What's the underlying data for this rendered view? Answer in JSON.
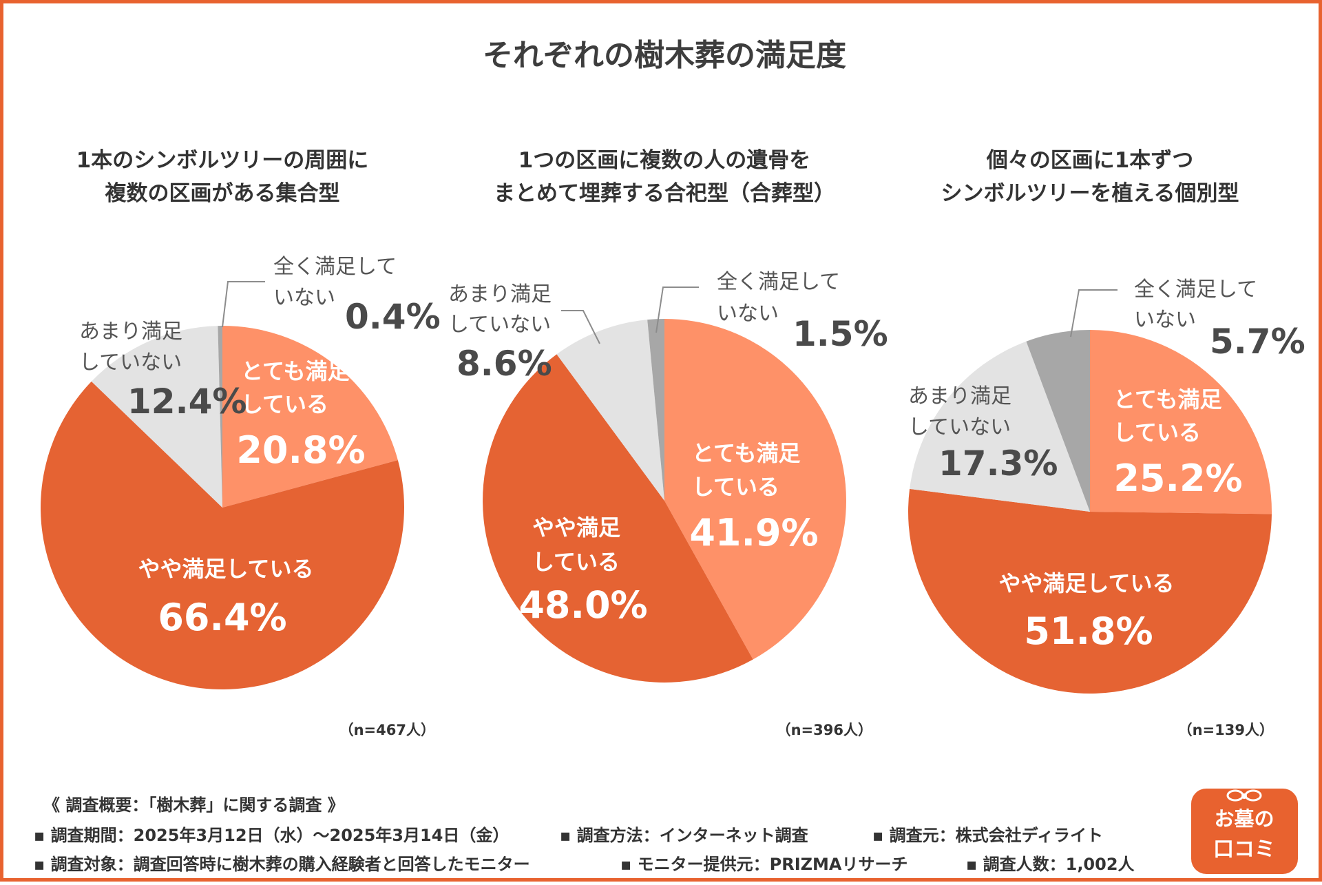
{
  "title": "それぞれの樹木葬の満足度",
  "colors": {
    "very_satisfied": "#fe9168",
    "somewhat_satisfied": "#e56333",
    "not_very_satisfied": "#e3e3e3",
    "not_at_all_satisfied": "#a7a7a7",
    "frame": "#e8622f"
  },
  "chart_data": [
    {
      "type": "pie",
      "title_line1": "1本のシンボルツリーの周囲に",
      "title_line2": "複数の区画がある集合型",
      "sample": "（n=467人）",
      "slices": [
        {
          "key": "very_satisfied",
          "line1": "とても満足",
          "line2": "している",
          "value": 20.8,
          "value_label": "20.8%"
        },
        {
          "key": "somewhat_satisfied",
          "line1": "やや満足している",
          "line2": "",
          "value": 66.4,
          "value_label": "66.4%"
        },
        {
          "key": "not_very_satisfied",
          "line1": "あまり満足",
          "line2": "していない",
          "value": 12.4,
          "value_label": "12.4%"
        },
        {
          "key": "not_at_all_satisfied",
          "line1": "全く満足して",
          "line2": "いない",
          "value": 0.4,
          "value_label": "0.4%"
        }
      ]
    },
    {
      "type": "pie",
      "title_line1": "1つの区画に複数の人の遺骨を",
      "title_line2": "まとめて埋葬する合祀型（合葬型）",
      "sample": "（n=396人）",
      "slices": [
        {
          "key": "very_satisfied",
          "line1": "とても満足",
          "line2": "している",
          "value": 41.9,
          "value_label": "41.9%"
        },
        {
          "key": "somewhat_satisfied",
          "line1": "やや満足",
          "line2": "している",
          "value": 48.0,
          "value_label": "48.0%"
        },
        {
          "key": "not_very_satisfied",
          "line1": "あまり満足",
          "line2": "していない",
          "value": 8.6,
          "value_label": "8.6%"
        },
        {
          "key": "not_at_all_satisfied",
          "line1": "全く満足して",
          "line2": "いない",
          "value": 1.5,
          "value_label": "1.5%"
        }
      ]
    },
    {
      "type": "pie",
      "title_line1": "個々の区画に1本ずつ",
      "title_line2": "シンボルツリーを植える個別型",
      "sample": "（n=139人）",
      "slices": [
        {
          "key": "very_satisfied",
          "line1": "とても満足",
          "line2": "している",
          "value": 25.2,
          "value_label": "25.2%"
        },
        {
          "key": "somewhat_satisfied",
          "line1": "やや満足している",
          "line2": "",
          "value": 51.8,
          "value_label": "51.8%"
        },
        {
          "key": "not_very_satisfied",
          "line1": "あまり満足",
          "line2": "していない",
          "value": 17.3,
          "value_label": "17.3%"
        },
        {
          "key": "not_at_all_satisfied",
          "line1": "全く満足して",
          "line2": "いない",
          "value": 5.7,
          "value_label": "5.7%"
        }
      ]
    }
  ],
  "footer": {
    "heading": "《 調査概要：「樹木葬」に関する調査 》",
    "period": "▪ 調査期間：2025年3月12日（水）〜2025年3月14日（金）",
    "method": "▪ 調査方法：インターネット調査",
    "source": "▪ 調査元：株式会社ディライト",
    "target": "▪ 調査対象：調査回答時に樹木葬の購入経験者と回答したモニター",
    "provider": "▪ モニター提供元：PRIZMAリサーチ",
    "count": "▪ 調査人数：1,002人"
  },
  "logo": {
    "line1": "お墓の",
    "line2": "口コミ"
  }
}
